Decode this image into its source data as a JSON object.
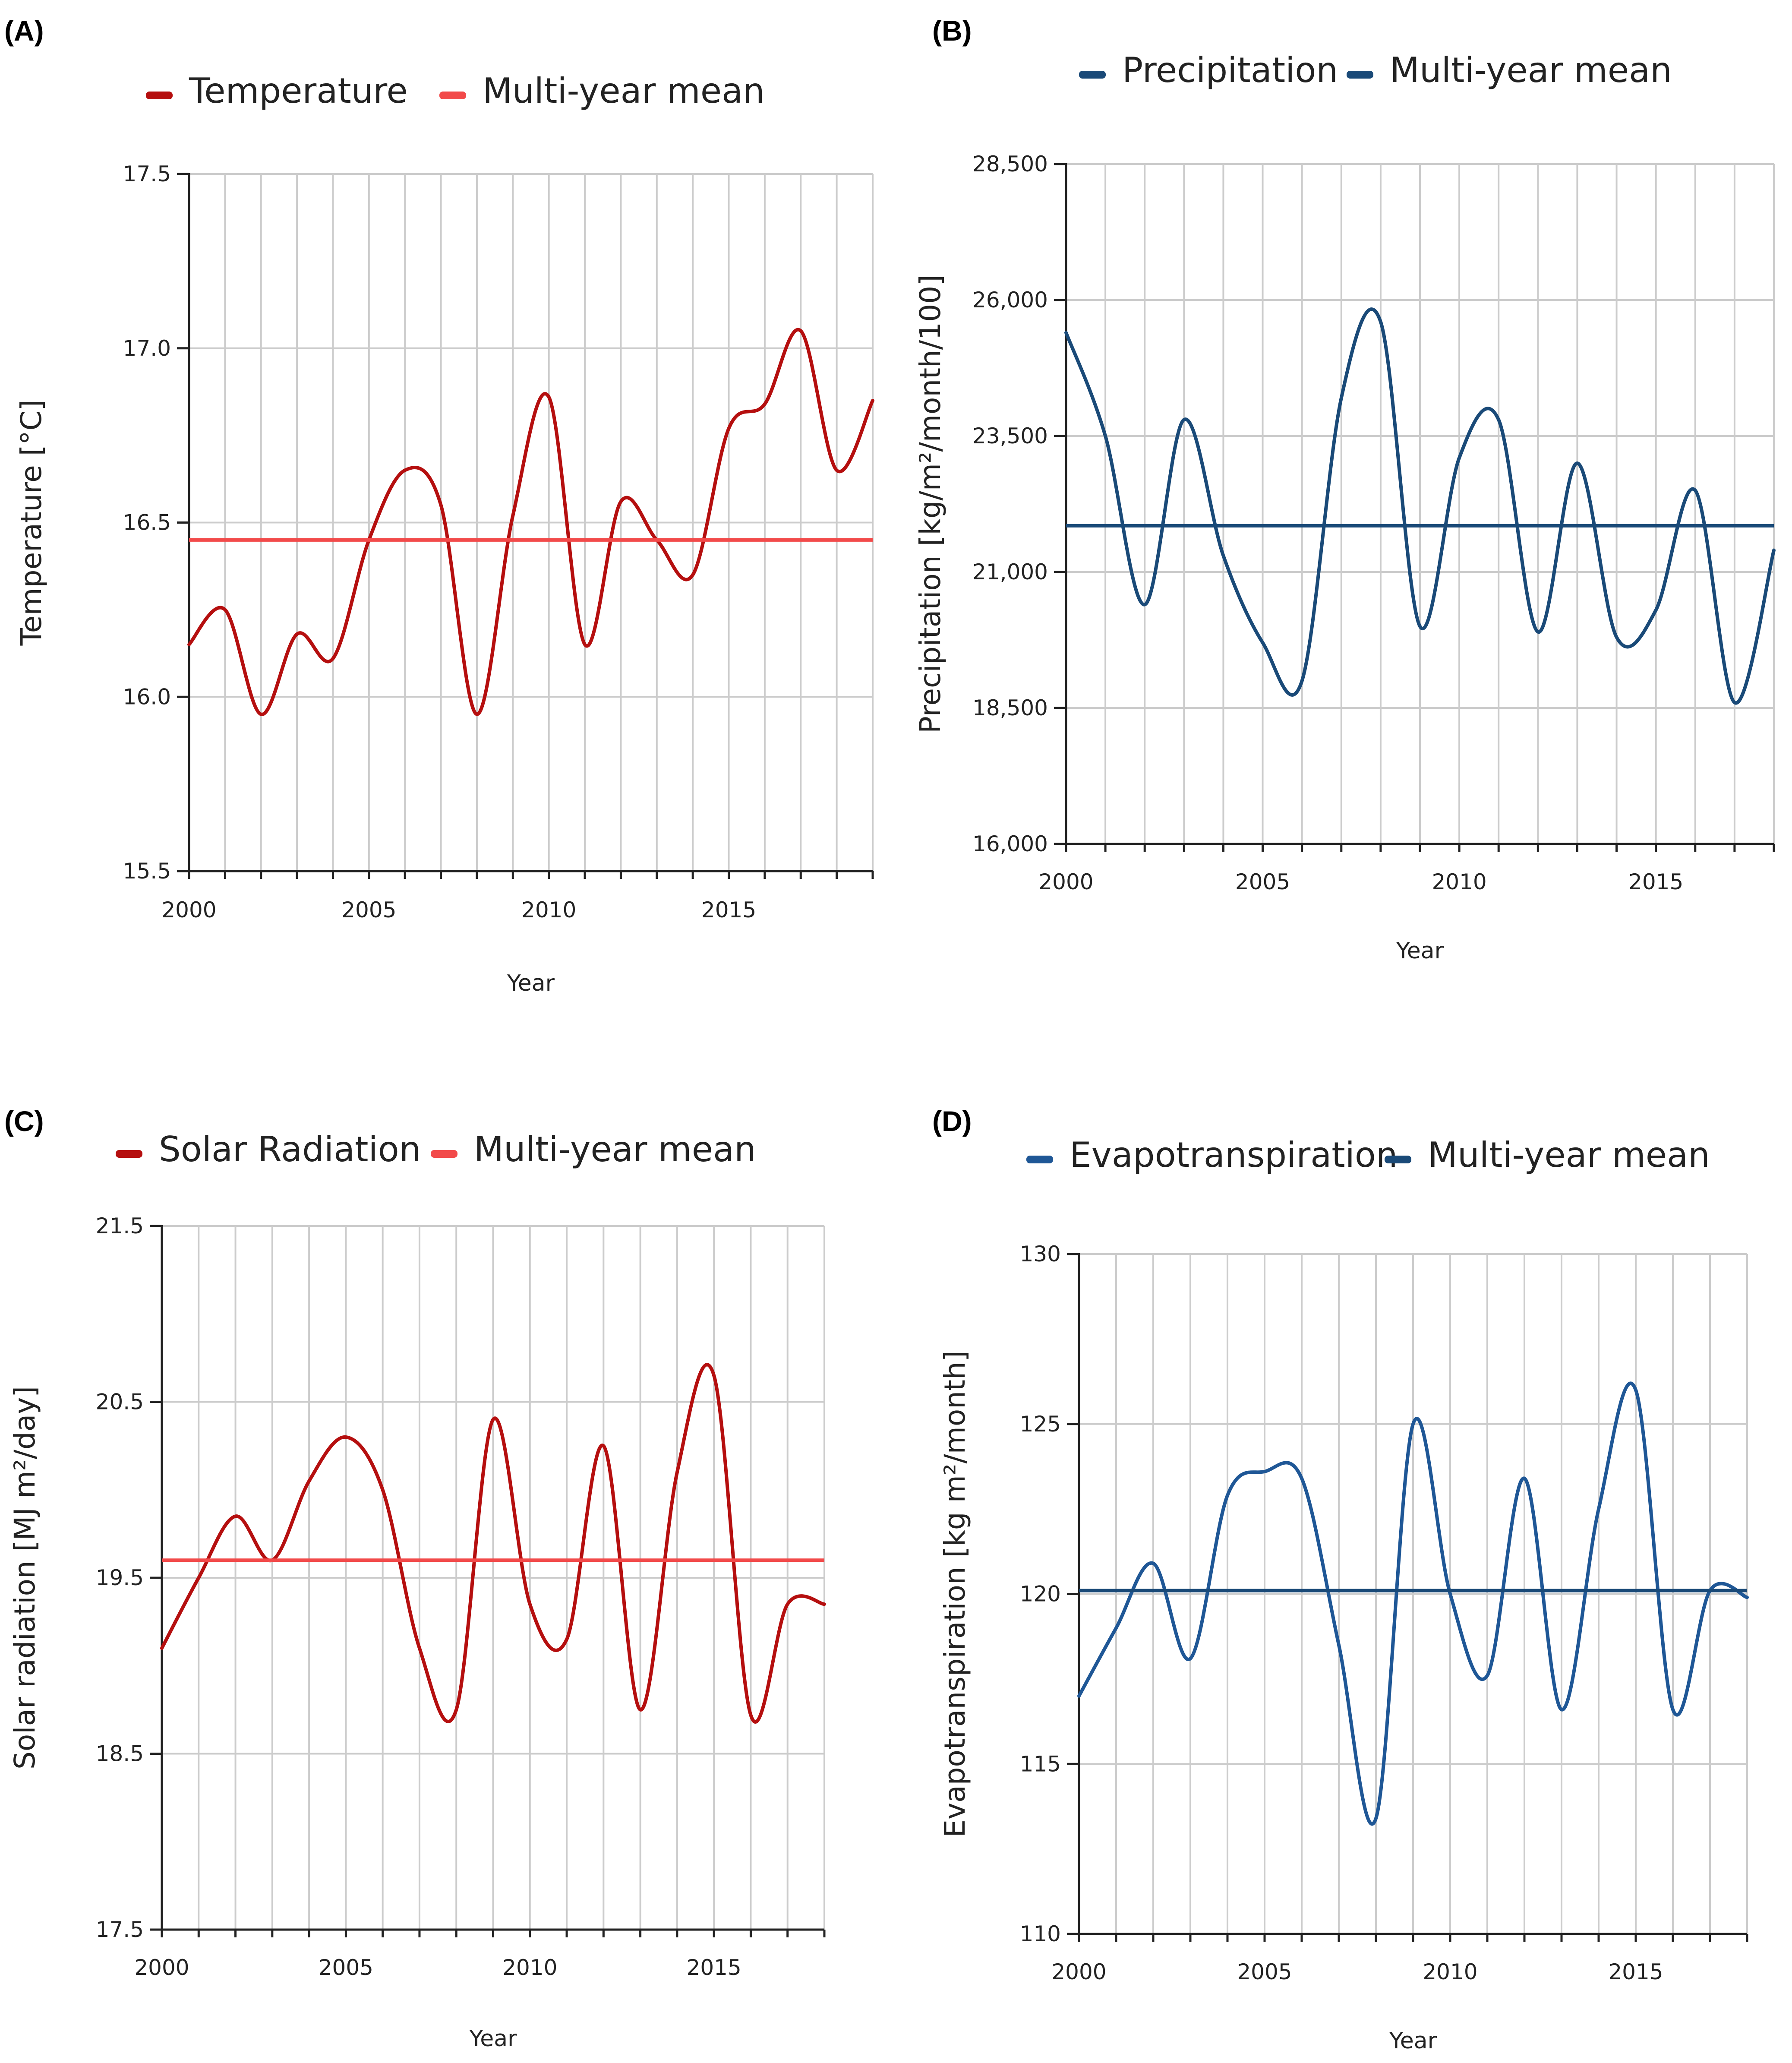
{
  "chart_data": [
    {
      "type": "line",
      "panel": "(A)",
      "xlabel": "Year",
      "ylabel": "Temperature [°C]",
      "ylim": [
        15.5,
        17.5
      ],
      "yticks": [
        15.5,
        16.0,
        16.5,
        17.0,
        17.5
      ],
      "ytick_labels": [
        "15.5",
        "16.0",
        "16.5",
        "17.0",
        "17.5"
      ],
      "xlim": [
        2000,
        2019
      ],
      "xticks": [
        2000,
        2005,
        2010,
        2015
      ],
      "xtick_labels": [
        "2000",
        "2005",
        "2010",
        "2015"
      ],
      "grid": true,
      "legend_position": "top",
      "series": [
        {
          "name": "Temperature",
          "color": "#b50f0f",
          "x": [
            2000,
            2001,
            2002,
            2003,
            2004,
            2005,
            2006,
            2007,
            2008,
            2009,
            2010,
            2011,
            2012,
            2013,
            2014,
            2015,
            2016,
            2017,
            2018,
            2019
          ],
          "values": [
            16.15,
            16.25,
            15.95,
            16.18,
            16.11,
            16.45,
            16.65,
            16.55,
            15.95,
            16.52,
            16.86,
            16.15,
            16.56,
            16.45,
            16.35,
            16.77,
            16.84,
            17.05,
            16.65,
            16.85
          ]
        },
        {
          "name": "Multi-year mean",
          "color": "#f24a4a",
          "mean": 16.45
        }
      ]
    },
    {
      "type": "line",
      "panel": "(B)",
      "xlabel": "Year",
      "ylabel": "Precipitation [kg/m²/month/100]",
      "ylim": [
        16000,
        28500
      ],
      "yticks": [
        16000,
        18500,
        21000,
        23500,
        26000,
        28500
      ],
      "ytick_labels": [
        "16,000",
        "18,500",
        "21,000",
        "23,500",
        "26,000",
        "28,500"
      ],
      "xlim": [
        2000,
        2018
      ],
      "xticks": [
        2000,
        2005,
        2010,
        2015
      ],
      "xtick_labels": [
        "2000",
        "2005",
        "2010",
        "2015"
      ],
      "grid": true,
      "legend_position": "top",
      "series": [
        {
          "name": "Precipitation",
          "color": "#1a4a78",
          "x": [
            2000,
            2001,
            2002,
            2003,
            2004,
            2005,
            2006,
            2007,
            2008,
            2009,
            2010,
            2011,
            2012,
            2013,
            2014,
            2015,
            2016,
            2017,
            2018
          ],
          "values": [
            25400,
            23500,
            20400,
            23800,
            21300,
            19700,
            19000,
            24200,
            25600,
            20000,
            23100,
            23800,
            19900,
            23000,
            19800,
            20300,
            22500,
            18600,
            21400
          ]
        },
        {
          "name": "Multi-year mean",
          "color": "#1a4a78",
          "mean": 21850
        }
      ]
    },
    {
      "type": "line",
      "panel": "(C)",
      "xlabel": "Year",
      "ylabel": "Solar radiation [MJ m²/day]",
      "ylim": [
        17.5,
        21.5
      ],
      "yticks": [
        17.5,
        18.5,
        19.5,
        20.5,
        21.5
      ],
      "ytick_labels": [
        "17.5",
        "18.5",
        "19.5",
        "20.5",
        "21.5"
      ],
      "xlim": [
        2000,
        2018
      ],
      "xticks": [
        2000,
        2005,
        2010,
        2015
      ],
      "xtick_labels": [
        "2000",
        "2005",
        "2010",
        "2015"
      ],
      "grid": true,
      "legend_position": "top",
      "series": [
        {
          "name": "Solar Radiation",
          "color": "#b50f0f",
          "x": [
            2000,
            2001,
            2002,
            2003,
            2004,
            2005,
            2006,
            2007,
            2008,
            2009,
            2010,
            2011,
            2012,
            2013,
            2014,
            2015,
            2016,
            2017,
            2018
          ],
          "values": [
            19.1,
            19.5,
            19.85,
            19.6,
            20.05,
            20.3,
            20.0,
            19.1,
            18.75,
            20.4,
            19.35,
            19.15,
            20.25,
            18.75,
            20.1,
            20.65,
            18.72,
            19.35,
            19.35
          ]
        },
        {
          "name": "Multi-year mean",
          "color": "#f24a4a",
          "mean": 19.6
        }
      ]
    },
    {
      "type": "line",
      "panel": "(D)",
      "xlabel": "Year",
      "ylabel": "Evapotranspiration [kg m²/month]",
      "ylim": [
        110,
        130
      ],
      "yticks": [
        110,
        115,
        120,
        125,
        130
      ],
      "ytick_labels": [
        "110",
        "115",
        "120",
        "125",
        "130"
      ],
      "xlim": [
        2000,
        2018
      ],
      "xticks": [
        2000,
        2005,
        2010,
        2015
      ],
      "xtick_labels": [
        "2000",
        "2005",
        "2010",
        "2015"
      ],
      "grid": true,
      "legend_position": "top",
      "series": [
        {
          "name": "Evapotranspiration",
          "color": "#1f5796",
          "x": [
            2000,
            2001,
            2002,
            2003,
            2004,
            2005,
            2006,
            2007,
            2008,
            2009,
            2010,
            2011,
            2012,
            2013,
            2014,
            2015,
            2016,
            2017,
            2018
          ],
          "values": [
            117.0,
            119.0,
            120.9,
            118.1,
            122.9,
            123.6,
            123.4,
            118.5,
            113.4,
            125.0,
            120.0,
            117.6,
            123.4,
            116.6,
            122.5,
            126.0,
            116.6,
            120.1,
            119.9
          ]
        },
        {
          "name": "Multi-year mean",
          "color": "#1a4a78",
          "mean": 120.1
        }
      ]
    }
  ]
}
